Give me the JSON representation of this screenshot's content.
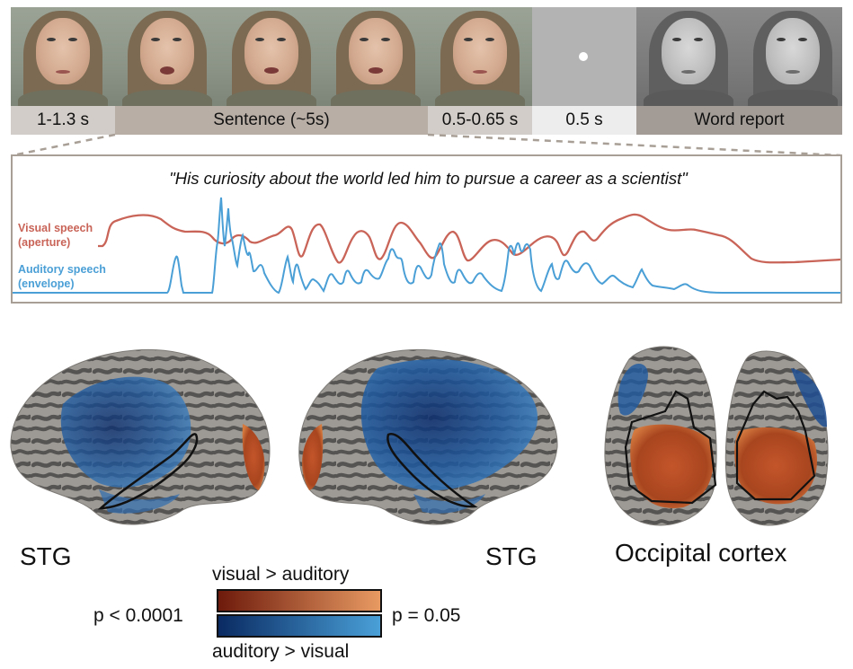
{
  "timeline": {
    "segments": [
      {
        "label": "1-1.3 s",
        "bg": "#d2cdc8"
      },
      {
        "label": "Sentence (~5s)",
        "bg": "#b9aea6"
      },
      {
        "label": "0.5-0.65 s",
        "bg": "#d2cdc8"
      },
      {
        "label": "0.5 s",
        "bg": "#ededed"
      },
      {
        "label": "Word report",
        "bg": "#a39c96"
      }
    ]
  },
  "speech_panel": {
    "sentence": "\"His curiosity about the world led him to pursue a career as a scientist\"",
    "visual_label_line1": "Visual speech",
    "visual_label_line2": "(aperture)",
    "auditory_label_line1": "Auditory speech",
    "auditory_label_line2": "(envelope)",
    "visual_color": "#c96458",
    "auditory_color": "#4a9fd6"
  },
  "brain": {
    "left_label": "STG",
    "right_label": "STG",
    "occipital_label": "Occipital cortex"
  },
  "legend": {
    "top_label": "visual > auditory",
    "bottom_label": "auditory > visual",
    "left_value": "p < 0.0001",
    "right_value": "p = 0.05",
    "warm_from": "#6e1a0c",
    "warm_to": "#e89a62",
    "cool_from": "#0a2a62",
    "cool_to": "#4aa0d8"
  }
}
